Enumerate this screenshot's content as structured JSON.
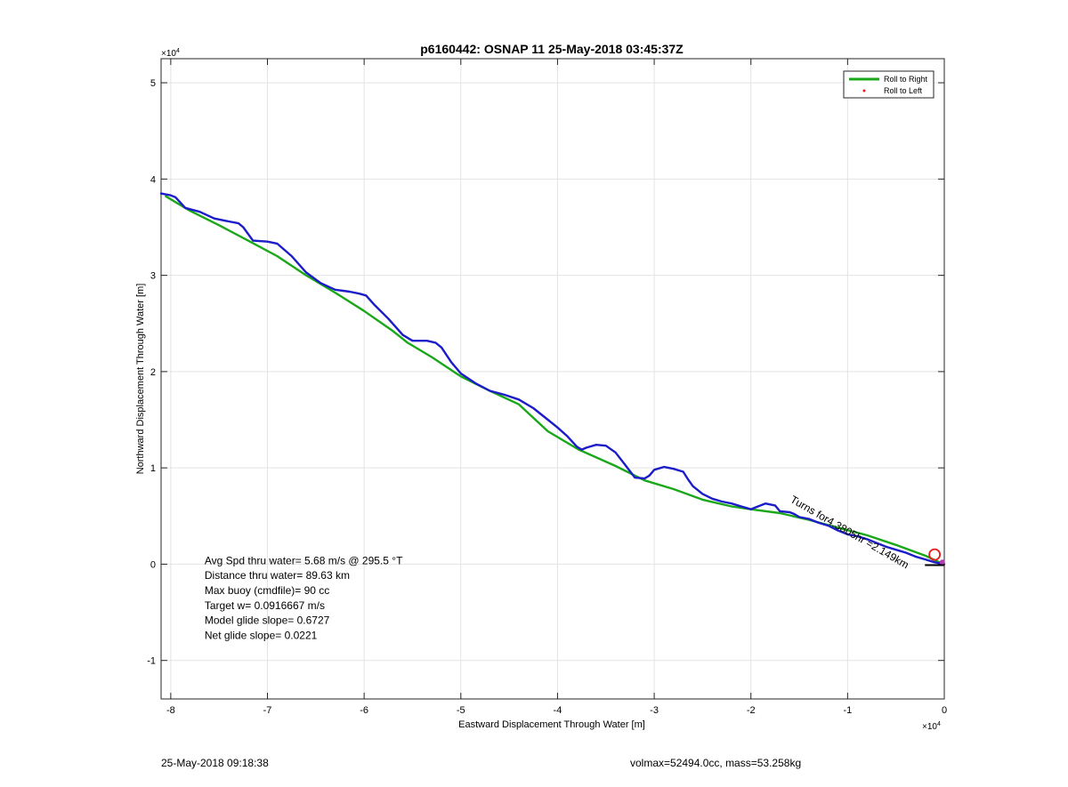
{
  "chart_data": {
    "type": "line",
    "title": "p6160442: OSNAP 11 25-May-2018 03:45:37Z",
    "xlabel": "Eastward Displacement Through Water [m]",
    "ylabel": "Northward Displacement Through Water [m]",
    "x_exponent_label": "×10",
    "x_exponent": "4",
    "y_exponent_label": "×10",
    "y_exponent": "4",
    "xlim": [
      -81000,
      0
    ],
    "ylim": [
      -14000,
      52500
    ],
    "x_ticks": [
      -80000,
      -70000,
      -60000,
      -50000,
      -40000,
      -30000,
      -20000,
      -10000,
      0
    ],
    "x_tick_labels": [
      "-8",
      "-7",
      "-6",
      "-5",
      "-4",
      "-3",
      "-2",
      "-1",
      "0"
    ],
    "y_ticks": [
      -10000,
      0,
      10000,
      20000,
      30000,
      40000,
      50000
    ],
    "y_tick_labels": [
      "-1",
      "0",
      "1",
      "2",
      "3",
      "4",
      "5"
    ],
    "grid": true,
    "legend_position": "top-right",
    "legend": [
      {
        "label": "Roll to Right",
        "color": "#1aa71a",
        "marker": "line"
      },
      {
        "label": "Roll to Left",
        "color": "#e21b1b",
        "marker": "dot"
      }
    ],
    "series": [
      {
        "name": "Roll to Right",
        "color": "#1aa71a",
        "x": [
          -80500,
          -78000,
          -75000,
          -72000,
          -69000,
          -66000,
          -63000,
          -60000,
          -57000,
          -55500,
          -53000,
          -50000,
          -47000,
          -44000,
          -41000,
          -37800,
          -34000,
          -31000,
          -28000,
          -25000,
          -22000,
          -20000,
          -17000,
          -14000,
          -11000,
          -8000,
          -5000,
          -2000,
          -500
        ],
        "y": [
          38200,
          36700,
          35200,
          33600,
          32000,
          30000,
          28200,
          26300,
          24200,
          23000,
          21500,
          19500,
          18000,
          16600,
          13800,
          11900,
          10200,
          8700,
          7800,
          6700,
          6000,
          5700,
          5300,
          4600,
          3800,
          3000,
          2000,
          900,
          200
        ]
      },
      {
        "name": "",
        "color": "#1c1cc8",
        "x": [
          -81000,
          -80000,
          -79500,
          -78500,
          -77000,
          -75500,
          -74000,
          -73000,
          -72500,
          -71500,
          -70000,
          -69000,
          -67500,
          -66000,
          -64500,
          -63000,
          -61500,
          -60500,
          -59800,
          -59000,
          -57500,
          -56000,
          -55000,
          -53500,
          -52600,
          -52000,
          -51000,
          -50000,
          -48500,
          -47000,
          -45500,
          -44000,
          -42500,
          -41000,
          -40000,
          -39000,
          -38000,
          -37500,
          -37000,
          -36000,
          -35000,
          -34000,
          -33000,
          -32000,
          -31000,
          -30500,
          -30000,
          -29000,
          -28000,
          -27000,
          -26500,
          -26000,
          -25000,
          -24000,
          -23000,
          -22000,
          -21000,
          -20000,
          -19500,
          -18500,
          -17500,
          -17000,
          -16000,
          -15500,
          -15000,
          -14000,
          -13000,
          -12000,
          -11000,
          -10000,
          -9000,
          -8000,
          -7000,
          -6000,
          -5000,
          -4000,
          -3000,
          -2000,
          -1000,
          0
        ],
        "y": [
          38500,
          38300,
          38100,
          37000,
          36600,
          35900,
          35600,
          35400,
          35000,
          33600,
          33500,
          33300,
          32000,
          30300,
          29200,
          28500,
          28300,
          28100,
          27900,
          27000,
          25500,
          23800,
          23200,
          23200,
          23000,
          22500,
          21000,
          19800,
          18800,
          18000,
          17600,
          17100,
          16200,
          15000,
          14200,
          13300,
          12200,
          11900,
          12100,
          12400,
          12300,
          11600,
          10300,
          9000,
          8900,
          9200,
          9800,
          10100,
          9900,
          9600,
          8800,
          8100,
          7300,
          6800,
          6500,
          6300,
          6000,
          5700,
          5900,
          6300,
          6100,
          5500,
          5400,
          5200,
          4900,
          4700,
          4300,
          4000,
          3500,
          3100,
          2900,
          2600,
          2200,
          1800,
          1500,
          1200,
          800,
          500,
          200,
          0
        ]
      }
    ],
    "annotations": [
      {
        "text": "4.3805hr = 2.149km",
        "x": -16000,
        "y": 6500,
        "angle_deg": 30,
        "display": "Turns for4.3805hr =2.149km"
      },
      {
        "text": "Avg Spd thru water=  5.68 m/s @ 295.5 °T",
        "x": -76500,
        "y": 0
      },
      {
        "text": "Distance thru water= 89.63 km",
        "x": -76500,
        "y": -1550
      },
      {
        "text": "Max buoy (cmdfile)= 90 cc",
        "x": -76500,
        "y": -3100
      },
      {
        "text": "Target w= 0.0916667 m/s",
        "x": -76500,
        "y": -4650
      },
      {
        "text": "Model glide slope= 0.6727",
        "x": -76500,
        "y": -6200
      },
      {
        "text": "Net glide slope= 0.0221",
        "x": -76500,
        "y": -7750
      }
    ],
    "end_marker": {
      "x": -1000,
      "y": 1000,
      "color": "#e21b1b"
    }
  },
  "footer": {
    "date": "25-May-2018 09:18:38",
    "info": "volmax=52494.0cc, mass=53.258kg"
  }
}
